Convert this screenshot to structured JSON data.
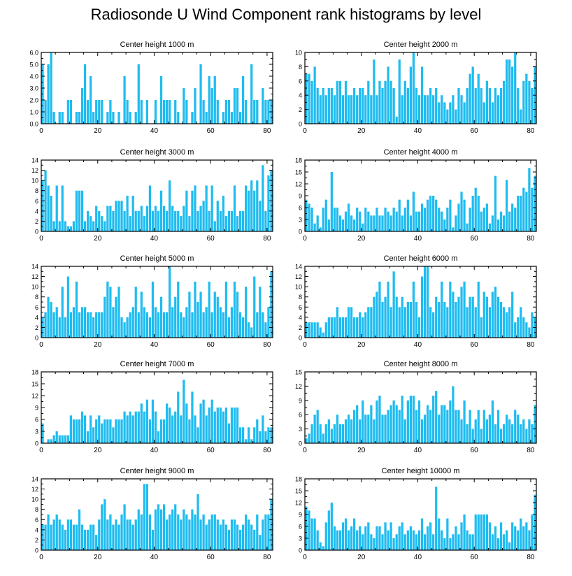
{
  "title": "Radiosonde U Wind Component rank histograms by level",
  "bar_color": "#1ebcf0",
  "chart_data": [
    {
      "type": "bar",
      "title": "Center height 1000 m",
      "xlabel": "",
      "ylabel": "",
      "xlim": [
        0,
        82
      ],
      "ylim": [
        0,
        6
      ],
      "yticks": [
        0,
        1,
        2,
        3,
        4,
        5,
        6
      ],
      "ytick_labels": [
        "0.0",
        "1.0",
        "2.0",
        "3.0",
        "4.0",
        "5.0",
        "6.0"
      ],
      "xticks": [
        0,
        20,
        40,
        60,
        80
      ],
      "xtick_labels": [
        "0",
        "20",
        "40",
        "60",
        "80"
      ],
      "values": [
        5,
        2,
        5,
        6,
        1,
        0,
        1,
        1,
        0,
        2,
        2,
        0,
        1,
        1,
        3,
        5,
        2,
        4,
        1,
        2,
        2,
        2,
        0,
        1,
        2,
        1,
        0,
        1,
        0,
        4,
        2,
        1,
        0,
        1,
        5,
        2,
        0,
        2,
        0,
        0,
        2,
        0,
        4,
        2,
        2,
        2,
        0,
        2,
        1,
        0,
        3,
        2,
        0,
        1,
        3,
        0,
        5,
        2,
        1,
        4,
        3,
        4,
        2,
        0,
        1,
        2,
        2,
        1,
        3,
        3,
        1,
        4,
        2,
        0,
        5,
        2,
        2,
        0,
        3,
        2,
        2,
        2
      ]
    },
    {
      "type": "bar",
      "title": "Center height 2000 m",
      "xlabel": "",
      "ylabel": "",
      "xlim": [
        0,
        82
      ],
      "ylim": [
        0,
        10
      ],
      "yticks": [
        0,
        2,
        4,
        6,
        8,
        10
      ],
      "ytick_labels": [
        "0",
        "2",
        "4",
        "6",
        "8",
        "10"
      ],
      "xticks": [
        0,
        20,
        40,
        60,
        80
      ],
      "xtick_labels": [
        "0",
        "20",
        "40",
        "60",
        "80"
      ],
      "values": [
        7,
        7,
        6,
        8,
        5,
        4,
        5,
        4,
        5,
        5,
        4,
        6,
        6,
        4,
        6,
        4,
        4,
        5,
        4,
        5,
        5,
        4,
        6,
        4,
        9,
        4,
        6,
        5,
        6,
        8,
        6,
        5,
        1,
        9,
        4,
        6,
        5,
        8,
        10,
        5,
        4,
        8,
        4,
        4,
        5,
        4,
        5,
        3,
        4,
        3,
        2,
        3,
        4,
        2,
        5,
        4,
        3,
        5,
        7,
        8,
        5,
        7,
        5,
        3,
        6,
        5,
        3,
        5,
        4,
        5,
        6,
        9,
        9,
        8,
        10,
        5,
        2,
        6,
        7,
        6,
        5,
        8
      ]
    },
    {
      "type": "bar",
      "title": "Center height 3000 m",
      "xlabel": "",
      "ylabel": "",
      "xlim": [
        0,
        82
      ],
      "ylim": [
        0,
        14
      ],
      "yticks": [
        0,
        2,
        4,
        6,
        8,
        10,
        12,
        14
      ],
      "ytick_labels": [
        "0",
        "2",
        "4",
        "6",
        "8",
        "10",
        "12",
        "14"
      ],
      "xticks": [
        0,
        20,
        40,
        60,
        80
      ],
      "xtick_labels": [
        "0",
        "20",
        "40",
        "60",
        "80"
      ],
      "values": [
        10,
        12,
        9,
        7,
        2,
        9,
        2,
        9,
        2,
        1,
        1,
        2,
        8,
        8,
        8,
        2,
        4,
        3,
        2,
        5,
        4,
        3,
        2,
        5,
        5,
        4,
        6,
        6,
        6,
        4,
        7,
        3,
        7,
        4,
        4,
        5,
        3,
        5,
        9,
        4,
        5,
        4,
        8,
        5,
        4,
        10,
        5,
        4,
        4,
        3,
        5,
        8,
        3,
        8,
        9,
        4,
        5,
        6,
        9,
        4,
        9,
        2,
        6,
        4,
        7,
        3,
        4,
        4,
        9,
        3,
        4,
        4,
        9,
        8,
        10,
        8,
        10,
        6,
        13,
        4,
        11,
        12
      ]
    },
    {
      "type": "bar",
      "title": "Center height 4000 m",
      "xlabel": "",
      "ylabel": "",
      "xlim": [
        0,
        82
      ],
      "ylim": [
        0,
        18
      ],
      "yticks": [
        0,
        3,
        6,
        9,
        12,
        15,
        18
      ],
      "ytick_labels": [
        "0",
        "3",
        "6",
        "9",
        "12",
        "15",
        "18"
      ],
      "xticks": [
        0,
        20,
        40,
        60,
        80
      ],
      "xtick_labels": [
        "0",
        "20",
        "40",
        "60",
        "80"
      ],
      "values": [
        8,
        7,
        6,
        2,
        4,
        1,
        6,
        8,
        3,
        15,
        6,
        6,
        4,
        3,
        5,
        7,
        4,
        3,
        6,
        5,
        2,
        6,
        5,
        4,
        4,
        6,
        4,
        4,
        6,
        5,
        4,
        6,
        5,
        8,
        4,
        6,
        8,
        4,
        10,
        5,
        5,
        7,
        6,
        8,
        9,
        9,
        8,
        6,
        5,
        3,
        6,
        8,
        1,
        4,
        7,
        10,
        8,
        2,
        6,
        9,
        11,
        9,
        5,
        6,
        7,
        2,
        4,
        14,
        3,
        5,
        4,
        13,
        5,
        7,
        6,
        9,
        9,
        11,
        10,
        16,
        11,
        14
      ]
    },
    {
      "type": "bar",
      "title": "Center height 5000 m",
      "xlabel": "",
      "ylabel": "",
      "xlim": [
        0,
        82
      ],
      "ylim": [
        0,
        14
      ],
      "yticks": [
        0,
        2,
        4,
        6,
        8,
        10,
        12,
        14
      ],
      "ytick_labels": [
        "0",
        "2",
        "4",
        "6",
        "8",
        "10",
        "12",
        "14"
      ],
      "xticks": [
        0,
        20,
        40,
        60,
        80
      ],
      "xtick_labels": [
        "0",
        "20",
        "40",
        "60",
        "80"
      ],
      "values": [
        4,
        5,
        8,
        7,
        5,
        6,
        4,
        10,
        4,
        12,
        5,
        6,
        11,
        5,
        6,
        6,
        5,
        5,
        4,
        5,
        5,
        5,
        8,
        11,
        10,
        6,
        8,
        10,
        4,
        3,
        4,
        5,
        6,
        10,
        5,
        9,
        6,
        5,
        4,
        11,
        6,
        5,
        8,
        5,
        5,
        14,
        6,
        8,
        11,
        5,
        4,
        6,
        9,
        5,
        11,
        7,
        9,
        5,
        6,
        11,
        5,
        9,
        8,
        6,
        5,
        11,
        4,
        6,
        11,
        9,
        5,
        4,
        10,
        3,
        2,
        12,
        5,
        10,
        5,
        3,
        6,
        13
      ]
    },
    {
      "type": "bar",
      "title": "Center height 6000 m",
      "xlabel": "",
      "ylabel": "",
      "xlim": [
        0,
        82
      ],
      "ylim": [
        0,
        14
      ],
      "yticks": [
        0,
        2,
        4,
        6,
        8,
        10,
        12,
        14
      ],
      "ytick_labels": [
        "0",
        "2",
        "4",
        "6",
        "8",
        "10",
        "12",
        "14"
      ],
      "xticks": [
        0,
        20,
        40,
        60,
        80
      ],
      "xtick_labels": [
        "0",
        "20",
        "40",
        "60",
        "80"
      ],
      "values": [
        3,
        3,
        3,
        3,
        3,
        2,
        1,
        3,
        4,
        4,
        4,
        6,
        4,
        4,
        4,
        6,
        6,
        4,
        4,
        5,
        4,
        5,
        6,
        6,
        8,
        9,
        11,
        7,
        8,
        11,
        6,
        13,
        8,
        6,
        8,
        6,
        7,
        7,
        11,
        7,
        4,
        12,
        14,
        14,
        6,
        5,
        8,
        7,
        11,
        7,
        6,
        11,
        9,
        7,
        8,
        10,
        11,
        6,
        8,
        8,
        6,
        11,
        4,
        9,
        8,
        6,
        9,
        10,
        8,
        7,
        6,
        5,
        6,
        9,
        3,
        4,
        6,
        4,
        3,
        2,
        5,
        4
      ]
    },
    {
      "type": "bar",
      "title": "Center height 7000 m",
      "xlabel": "",
      "ylabel": "",
      "xlim": [
        0,
        82
      ],
      "ylim": [
        0,
        18
      ],
      "yticks": [
        0,
        3,
        6,
        9,
        12,
        15,
        18
      ],
      "ytick_labels": [
        "0",
        "3",
        "6",
        "9",
        "12",
        "15",
        "18"
      ],
      "xticks": [
        0,
        20,
        40,
        60,
        80
      ],
      "xtick_labels": [
        "0",
        "20",
        "40",
        "60",
        "80"
      ],
      "values": [
        5,
        0,
        1,
        1,
        2,
        3,
        2,
        2,
        2,
        2,
        7,
        6,
        6,
        6,
        8,
        7,
        3,
        7,
        4,
        6,
        7,
        5,
        6,
        6,
        6,
        4,
        6,
        6,
        6,
        8,
        7,
        8,
        7,
        8,
        8,
        10,
        8,
        11,
        6,
        11,
        8,
        3,
        6,
        6,
        10,
        9,
        7,
        8,
        13,
        7,
        16,
        10,
        6,
        13,
        7,
        4,
        10,
        11,
        7,
        9,
        11,
        8,
        9,
        9,
        8,
        9,
        5,
        9,
        9,
        9,
        4,
        4,
        1,
        4,
        1,
        4,
        6,
        3,
        7,
        3,
        4,
        4
      ]
    },
    {
      "type": "bar",
      "title": "Center height 8000 m",
      "xlabel": "",
      "ylabel": "",
      "xlim": [
        0,
        82
      ],
      "ylim": [
        0,
        15
      ],
      "yticks": [
        0,
        3,
        6,
        9,
        12,
        15
      ],
      "ytick_labels": [
        "0",
        "3",
        "6",
        "9",
        "12",
        "15"
      ],
      "xticks": [
        0,
        20,
        40,
        60,
        80
      ],
      "xtick_labels": [
        "0",
        "20",
        "40",
        "60",
        "80"
      ],
      "values": [
        1,
        2,
        4,
        6,
        7,
        4,
        2,
        4,
        5,
        3,
        4,
        6,
        4,
        4,
        5,
        6,
        5,
        7,
        8,
        5,
        9,
        6,
        6,
        8,
        5,
        9,
        10,
        6,
        6,
        7,
        8,
        9,
        8,
        7,
        10,
        5,
        9,
        10,
        10,
        7,
        9,
        5,
        6,
        8,
        7,
        10,
        11,
        6,
        8,
        8,
        7,
        9,
        12,
        7,
        7,
        5,
        9,
        4,
        7,
        3,
        5,
        7,
        3,
        7,
        5,
        6,
        9,
        4,
        7,
        3,
        4,
        6,
        5,
        4,
        7,
        6,
        4,
        5,
        3,
        5,
        4,
        8
      ]
    },
    {
      "type": "bar",
      "title": "Center height 9000 m",
      "xlabel": "",
      "ylabel": "",
      "xlim": [
        0,
        82
      ],
      "ylim": [
        0,
        14
      ],
      "yticks": [
        0,
        2,
        4,
        6,
        8,
        10,
        12,
        14
      ],
      "ytick_labels": [
        "0",
        "2",
        "4",
        "6",
        "8",
        "10",
        "12",
        "14"
      ],
      "xticks": [
        0,
        20,
        40,
        60,
        80
      ],
      "xtick_labels": [
        "0",
        "20",
        "40",
        "60",
        "80"
      ],
      "values": [
        5,
        5,
        7,
        5,
        6,
        7,
        6,
        5,
        4,
        6,
        6,
        5,
        5,
        8,
        5,
        4,
        4,
        5,
        5,
        3,
        6,
        9,
        10,
        6,
        7,
        5,
        6,
        5,
        7,
        9,
        6,
        6,
        5,
        6,
        8,
        7,
        13,
        13,
        7,
        4,
        8,
        9,
        8,
        9,
        6,
        7,
        8,
        9,
        7,
        6,
        8,
        7,
        6,
        8,
        7,
        11,
        6,
        7,
        5,
        6,
        7,
        7,
        6,
        5,
        6,
        5,
        4,
        6,
        6,
        5,
        4,
        5,
        7,
        6,
        5,
        4,
        7,
        3,
        6,
        7,
        7,
        10
      ]
    },
    {
      "type": "bar",
      "title": "Center height 10000 m",
      "xlabel": "",
      "ylabel": "",
      "xlim": [
        0,
        82
      ],
      "ylim": [
        0,
        18
      ],
      "yticks": [
        0,
        3,
        6,
        9,
        12,
        15,
        18
      ],
      "ytick_labels": [
        "0",
        "3",
        "6",
        "9",
        "12",
        "15",
        "18"
      ],
      "xticks": [
        0,
        20,
        40,
        60,
        80
      ],
      "xtick_labels": [
        "0",
        "20",
        "40",
        "60",
        "80"
      ],
      "values": [
        11,
        10,
        8,
        8,
        5,
        2,
        1,
        7,
        10,
        12,
        6,
        5,
        5,
        7,
        8,
        5,
        6,
        8,
        5,
        6,
        4,
        6,
        7,
        4,
        3,
        6,
        6,
        4,
        7,
        5,
        7,
        3,
        4,
        6,
        7,
        4,
        5,
        6,
        5,
        4,
        5,
        8,
        4,
        6,
        7,
        4,
        16,
        8,
        5,
        3,
        8,
        3,
        4,
        6,
        4,
        7,
        9,
        5,
        4,
        4,
        9,
        9,
        9,
        9,
        9,
        7,
        4,
        6,
        3,
        7,
        4,
        5,
        2,
        7,
        6,
        5,
        8,
        6,
        7,
        5,
        9,
        14
      ]
    }
  ]
}
